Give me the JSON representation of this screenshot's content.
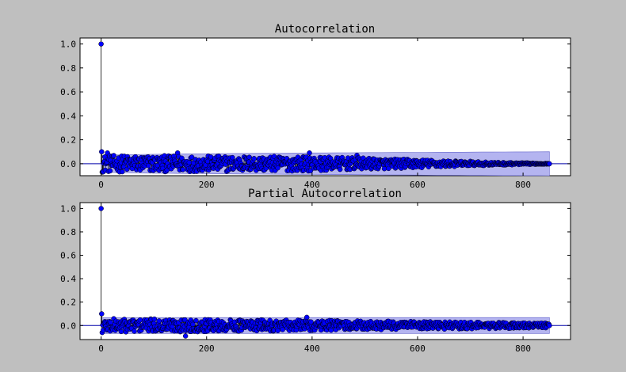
{
  "figure": {
    "background": "#bfbfbf"
  },
  "chart_data": [
    {
      "type": "stem",
      "title": "Autocorrelation",
      "xlim": [
        -40,
        890
      ],
      "ylim": [
        -0.1,
        1.05
      ],
      "xticks": [
        0,
        200,
        400,
        600,
        800
      ],
      "yticks": [
        0.0,
        0.2,
        0.4,
        0.6,
        0.8,
        1.0
      ],
      "xtick_labels": [
        "0",
        "200",
        "400",
        "600",
        "800"
      ],
      "ytick_labels": [
        "0.0",
        "0.2",
        "0.4",
        "0.6",
        "0.8",
        "1.0"
      ],
      "lags": [
        0,
        850
      ],
      "lag0_value": 1.0,
      "confidence_band": {
        "x_range": [
          0,
          850
        ],
        "start_halfwidth": 0.068,
        "end_halfwidth": 0.1,
        "color": "#b4b4f0"
      },
      "sample_values": [
        {
          "lag": 1,
          "value": 0.1
        },
        {
          "lag": 2,
          "value": -0.07
        },
        {
          "lag": 12,
          "value": 0.09
        },
        {
          "lag": 145,
          "value": 0.09
        },
        {
          "lag": 395,
          "value": 0.09
        },
        {
          "lag": 485,
          "value": 0.07
        },
        {
          "lag": 700,
          "value": 0.02
        },
        {
          "lag": 850,
          "value": 0.0
        }
      ],
      "values_envelope": [
        {
          "lag": 0,
          "amplitude": 0.07
        },
        {
          "lag": 400,
          "amplitude": 0.06
        },
        {
          "lag": 600,
          "amplitude": 0.035
        },
        {
          "lag": 720,
          "amplitude": 0.015
        },
        {
          "lag": 850,
          "amplitude": 0.002
        }
      ],
      "marker_color": "#0000ff",
      "line_color": "#000000",
      "zero_line_color": "#0000aa"
    },
    {
      "type": "stem",
      "title": "Partial Autocorrelation",
      "xlim": [
        -40,
        890
      ],
      "ylim": [
        -0.12,
        1.05
      ],
      "xticks": [
        0,
        200,
        400,
        600,
        800
      ],
      "yticks": [
        0.0,
        0.2,
        0.4,
        0.6,
        0.8,
        1.0
      ],
      "xtick_labels": [
        "0",
        "200",
        "400",
        "600",
        "800"
      ],
      "ytick_labels": [
        "0.0",
        "0.2",
        "0.4",
        "0.6",
        "0.8",
        "1.0"
      ],
      "lags": [
        0,
        850
      ],
      "lag0_value": 1.0,
      "confidence_band": {
        "x_range": [
          0,
          850
        ],
        "start_halfwidth": 0.068,
        "end_halfwidth": 0.068,
        "color": "#b4b4f0"
      },
      "sample_values": [
        {
          "lag": 1,
          "value": 0.1
        },
        {
          "lag": 2,
          "value": -0.06
        },
        {
          "lag": 160,
          "value": -0.09
        },
        {
          "lag": 390,
          "value": 0.07
        },
        {
          "lag": 850,
          "value": 0.0
        }
      ],
      "values_envelope": [
        {
          "lag": 0,
          "amplitude": 0.06
        },
        {
          "lag": 400,
          "amplitude": 0.045
        },
        {
          "lag": 850,
          "amplitude": 0.02
        }
      ],
      "marker_color": "#0000ff",
      "line_color": "#000000",
      "zero_line_color": "#0000aa"
    }
  ]
}
